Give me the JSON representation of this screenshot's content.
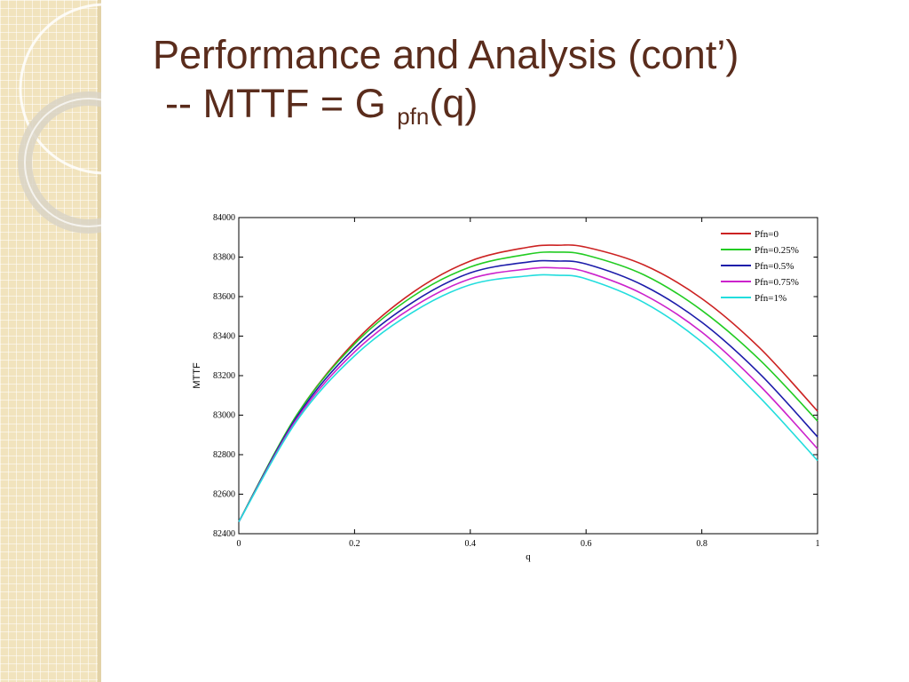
{
  "slide": {
    "title_line1": "Performance and Analysis (cont’)",
    "title_line2_prefix": "-- MTTF = G ",
    "title_line2_sub": "pfn",
    "title_line2_suffix": "(q)",
    "accent_color": "#5a2c1c",
    "side_strip_color": "#f1e3bd"
  },
  "chart_data": {
    "type": "line",
    "title": "",
    "xlabel": "q",
    "ylabel": "MTTF",
    "xlim": [
      0,
      1
    ],
    "ylim": [
      82400,
      84000
    ],
    "xticks": [
      0,
      0.2,
      0.4,
      0.6,
      0.8,
      1
    ],
    "xtick_labels": [
      "0",
      "0.2",
      "0.4",
      "0.6",
      "0.8",
      "1"
    ],
    "yticks": [
      82400,
      82600,
      82800,
      83000,
      83200,
      83400,
      83600,
      83800,
      84000
    ],
    "ytick_labels": [
      "82400",
      "82600",
      "82800",
      "83000",
      "83200",
      "83400",
      "83600",
      "83800",
      "84000"
    ],
    "grid": false,
    "legend_position": "top-right",
    "x": [
      0,
      0.1,
      0.2,
      0.3,
      0.4,
      0.5,
      0.55,
      0.6,
      0.7,
      0.8,
      0.9,
      1
    ],
    "series": [
      {
        "name": "Pfn=0",
        "color": "#cc2222",
        "values": [
          82460,
          83000,
          83370,
          83620,
          83780,
          83850,
          83860,
          83850,
          83760,
          83590,
          83340,
          83020
        ]
      },
      {
        "name": "Pfn=0.25%",
        "color": "#22cc22",
        "values": [
          82460,
          83000,
          83360,
          83600,
          83750,
          83815,
          83825,
          83810,
          83710,
          83530,
          83280,
          82970
        ]
      },
      {
        "name": "Pfn=0.5%",
        "color": "#1c1caa",
        "values": [
          82460,
          82990,
          83340,
          83570,
          83720,
          83775,
          83780,
          83765,
          83655,
          83470,
          83210,
          82890
        ]
      },
      {
        "name": "Pfn=0.75%",
        "color": "#cc22cc",
        "values": [
          82460,
          82980,
          83320,
          83545,
          83690,
          83740,
          83745,
          83725,
          83610,
          83420,
          83150,
          82830
        ]
      },
      {
        "name": "Pfn=1%",
        "color": "#22dddd",
        "values": [
          82460,
          82970,
          83300,
          83520,
          83660,
          83705,
          83708,
          83690,
          83570,
          83370,
          83090,
          82770
        ]
      }
    ]
  }
}
